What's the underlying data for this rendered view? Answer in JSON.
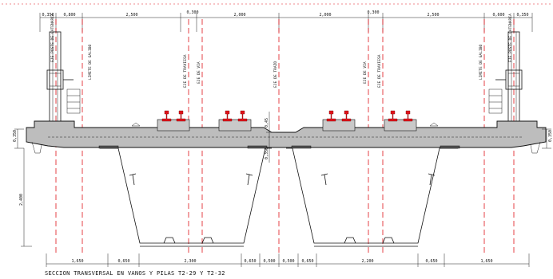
{
  "top_dimensions": [
    "0,350",
    "0,800",
    "2,500",
    "0,300",
    "2,000",
    "2,000",
    "0,300",
    "2,500",
    "0,600",
    "0,350"
  ],
  "bottom_dimensions": [
    "1,650",
    "0,650",
    "2,300",
    "0,650",
    "0,500",
    "0,500",
    "0,650",
    "2,200",
    "0,650",
    "1,650"
  ],
  "vertical_dimensions": {
    "left_slab": "0,350",
    "right_slab": "0,350",
    "girder_depth": "2,400",
    "center_top": "0,45",
    "center_bottom": "0,350"
  },
  "axis_labels": {
    "catenary_left": "EJE POSTE DE CATENARIA",
    "gauge_limit_left": "LIMITE DE GALIBO",
    "track_axis_left": "EJE DE TRAVIESA",
    "rail_axis_left": "EJE DE VIA",
    "structure_axis": "EJE DE TRAZO",
    "rail_axis_right": "EJE DE VIA",
    "track_axis_right": "EJE DE TRAVIESA",
    "gauge_limit_right": "LIMITE DE GALIBO",
    "catenary_right": "EJE POSTE DE CATENARIA"
  },
  "caption": "SECCION TRANSVERSAL EN VANOS Y PILAS T2-29 Y T2-32",
  "colors": {
    "axis_red": "#e0121a",
    "concrete": "#bdbdbd",
    "line": "#111111"
  }
}
